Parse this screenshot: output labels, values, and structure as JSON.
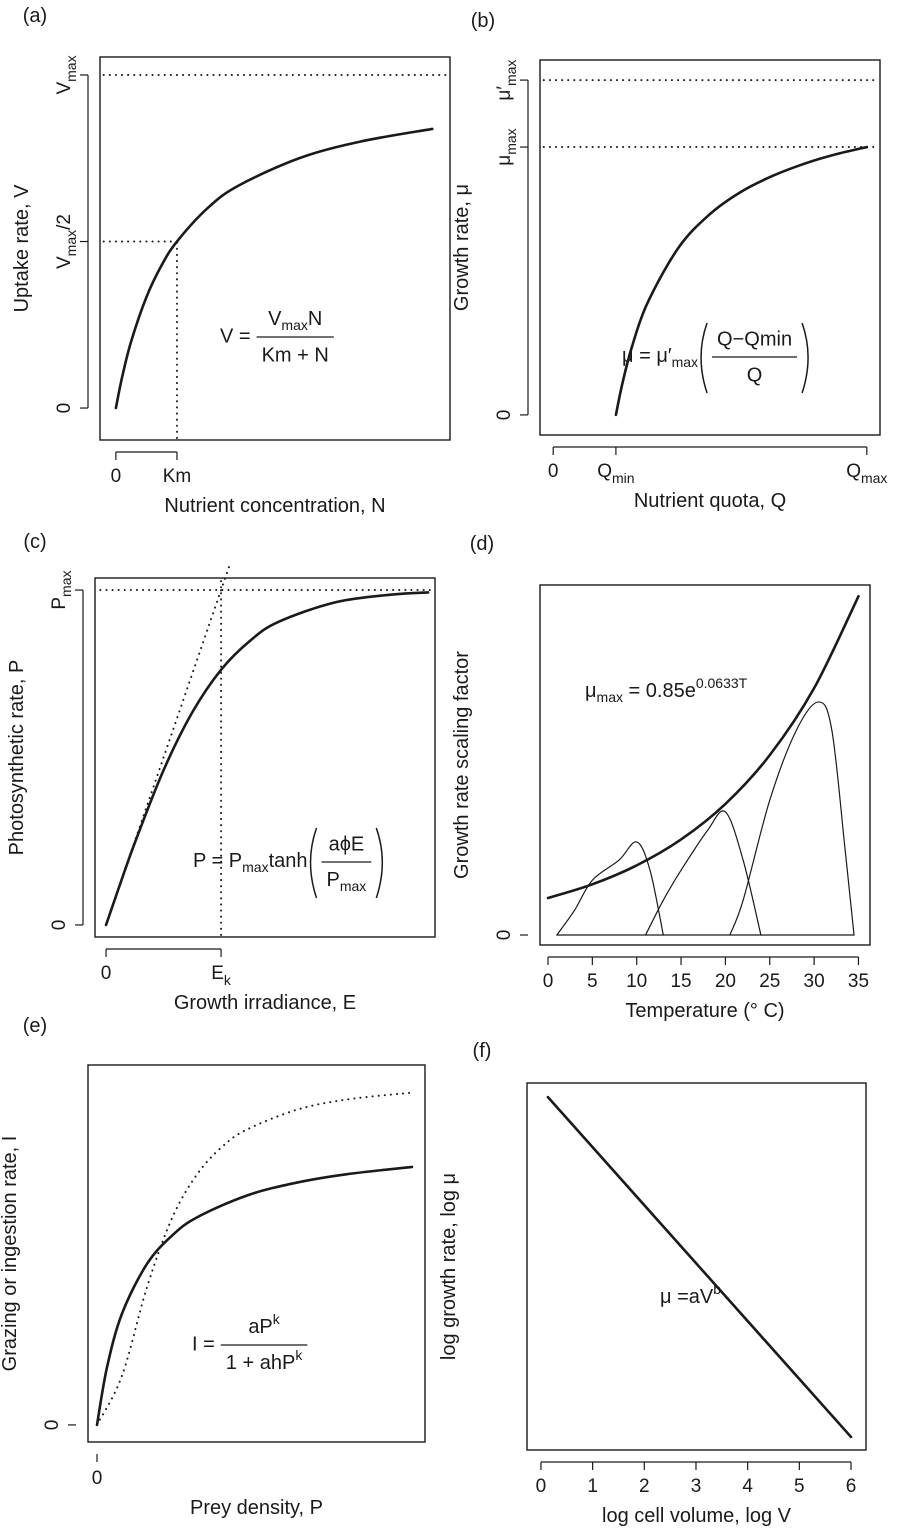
{
  "chart_data": [
    {
      "type": "line",
      "panel_label": "(a)",
      "xlabel": "Nutrient concentration, N",
      "ylabel": "Uptake rate, V",
      "xlim": [
        -0.26,
        5.47
      ],
      "ylim": [
        -0.096,
        1.054
      ],
      "xticks": [
        0,
        {
          "value": 1,
          "label": "Km"
        }
      ],
      "yticks": [
        0,
        {
          "value": 0.5,
          "label": [
            {
              "t": "V"
            },
            {
              "t": "max",
              "s": "sub"
            },
            {
              "t": "/2"
            }
          ]
        },
        {
          "value": 1,
          "label": [
            {
              "t": "V"
            },
            {
              "t": "max",
              "s": "sub"
            }
          ]
        }
      ],
      "series": [
        {
          "x": [
            0,
            0.1,
            0.25,
            0.5,
            0.75,
            1,
            1.5,
            2,
            3,
            4,
            5.18
          ],
          "values": [
            0,
            0.091,
            0.2,
            0.333,
            0.429,
            0.5,
            0.6,
            0.667,
            0.75,
            0.8,
            0.838
          ],
          "style": "solid",
          "linewidth": 2.6,
          "color": "#1a1a1a"
        },
        {
          "x": [
            -0.2,
            5.4
          ],
          "values": [
            1,
            1
          ],
          "style": "dotted",
          "linewidth": 2,
          "color": "#1a1a1a"
        },
        {
          "x": [
            -0.2,
            1
          ],
          "values": [
            0.5,
            0.5
          ],
          "style": "dotted",
          "linewidth": 2,
          "color": "#1a1a1a"
        },
        {
          "x": [
            1,
            1
          ],
          "values": [
            -0.09,
            0.5
          ],
          "style": "dotted",
          "linewidth": 2,
          "color": "#1a1a1a"
        }
      ],
      "annotation": {
        "lhs": "V =",
        "num": [
          {
            "t": "V"
          },
          {
            "t": "max",
            "s": "sub"
          },
          {
            "t": "N"
          }
        ],
        "den": "Km + N"
      }
    },
    {
      "type": "line",
      "panel_label": "(b)",
      "xlabel": "Nutrient quota, Q",
      "ylabel": "Growth rate, μ",
      "xlim": [
        -0.21,
        5.21
      ],
      "ylim": [
        -0.06,
        1.06
      ],
      "xticks": [
        0,
        {
          "value": 1,
          "label": [
            {
              "t": "Q"
            },
            {
              "t": "min",
              "s": "sub"
            }
          ]
        },
        {
          "value": 5,
          "label": [
            {
              "t": "Q"
            },
            {
              "t": "max",
              "s": "sub"
            }
          ]
        }
      ],
      "yticks": [
        0,
        {
          "value": 0.8,
          "label": [
            {
              "t": "μ"
            },
            {
              "t": "max",
              "s": "sub"
            }
          ]
        },
        {
          "value": 1,
          "label": [
            {
              "t": "μ′"
            },
            {
              "t": "max",
              "s": "sub"
            }
          ]
        }
      ],
      "series": [
        {
          "x": [
            1,
            1.1,
            1.25,
            1.5,
            2,
            2.5,
            3,
            3.5,
            4,
            4.5,
            5
          ],
          "values": [
            0,
            0.091,
            0.2,
            0.333,
            0.5,
            0.6,
            0.667,
            0.714,
            0.75,
            0.778,
            0.8
          ],
          "style": "solid",
          "linewidth": 2.6,
          "color": "#1a1a1a"
        },
        {
          "x": [
            -0.15,
            5.15
          ],
          "values": [
            1,
            1
          ],
          "style": "dotted",
          "linewidth": 2,
          "color": "#1a1a1a"
        },
        {
          "x": [
            -0.15,
            5.15
          ],
          "values": [
            0.8,
            0.8
          ],
          "style": "dotted",
          "linewidth": 2,
          "color": "#1a1a1a"
        }
      ],
      "annotation": {
        "lhs": [
          {
            "t": "μ = μ′"
          },
          {
            "t": "max",
            "s": "sub"
          }
        ],
        "num": "Q−Qmin",
        "den": "Q",
        "parens": true
      }
    },
    {
      "type": "line",
      "panel_label": "(c)",
      "xlabel": "Growth irradiance, E",
      "ylabel": "Photosynthetic rate, P",
      "xlim": [
        -0.096,
        2.86
      ],
      "ylim": [
        -0.036,
        1.036
      ],
      "xticks": [
        0,
        {
          "value": 1,
          "label": [
            {
              "t": "E"
            },
            {
              "t": "k",
              "s": "sub"
            }
          ]
        }
      ],
      "yticks": [
        0,
        {
          "value": 1,
          "label": [
            {
              "t": "P"
            },
            {
              "t": "max",
              "s": "sub"
            }
          ]
        }
      ],
      "series": [
        {
          "x": [
            0,
            0.1,
            0.25,
            0.5,
            0.75,
            1,
            1.25,
            1.5,
            2,
            2.5,
            2.8
          ],
          "values": [
            0,
            0.0997,
            0.245,
            0.462,
            0.635,
            0.762,
            0.848,
            0.905,
            0.964,
            0.987,
            0.993
          ],
          "style": "solid",
          "linewidth": 2.6,
          "color": "#1a1a1a"
        },
        {
          "x": [
            -0.05,
            2.82
          ],
          "values": [
            1,
            1
          ],
          "style": "dotted",
          "linewidth": 2,
          "color": "#1a1a1a"
        },
        {
          "x": [
            0,
            1.07
          ],
          "values": [
            0,
            1.07
          ],
          "style": "dotted",
          "linewidth": 2,
          "color": "#1a1a1a"
        },
        {
          "x": [
            1,
            1
          ],
          "values": [
            -0.03,
            1.03
          ],
          "style": "dotted",
          "linewidth": 2,
          "color": "#1a1a1a"
        }
      ],
      "annotation": {
        "lhs": [
          {
            "t": "P = P"
          },
          {
            "t": "max",
            "s": "sub"
          },
          {
            "t": "tanh"
          }
        ],
        "num": "aϕE",
        "den": [
          {
            "t": "P"
          },
          {
            "t": "max",
            "s": "sub"
          }
        ],
        "parens": true
      }
    },
    {
      "type": "line",
      "panel_label": "(d)",
      "xlabel": "Temperature (° C)",
      "ylabel": "Growth rate scaling factor",
      "xlim": [
        -0.9,
        36.3
      ],
      "ylim": [
        -0.23,
        8.05
      ],
      "xticks": [
        0,
        5,
        10,
        15,
        20,
        25,
        30,
        35
      ],
      "yticks": [
        0
      ],
      "series": [
        {
          "x": [
            0,
            5,
            10,
            15,
            20,
            25,
            30,
            35
          ],
          "values": [
            0.85,
            1.166,
            1.601,
            2.197,
            3.015,
            4.137,
            5.677,
            7.791
          ],
          "style": "solid",
          "linewidth": 2.6,
          "color": "#1a1a1a"
        },
        {
          "x": [
            1,
            3,
            5,
            8,
            10,
            11.5,
            13
          ],
          "values": [
            0,
            0.57,
            1.26,
            1.72,
            2.14,
            1.49,
            0
          ],
          "style": "solid",
          "linewidth": 1.2,
          "color": "#1a1a1a"
        },
        {
          "x": [
            11,
            13,
            15,
            18,
            20,
            22,
            24
          ],
          "values": [
            0,
            0.8,
            1.49,
            2.41,
            2.83,
            1.72,
            0
          ],
          "style": "solid",
          "linewidth": 1.2,
          "color": "#1a1a1a"
        },
        {
          "x": [
            20.5,
            22,
            25,
            28,
            30.5,
            32,
            33.5,
            34.5
          ],
          "values": [
            0,
            0.8,
            3.1,
            4.71,
            5.36,
            4.71,
            1.95,
            0
          ],
          "style": "solid",
          "linewidth": 1.2,
          "color": "#1a1a1a"
        },
        {
          "x": [
            1,
            34.5
          ],
          "values": [
            0,
            0
          ],
          "style": "solid",
          "linewidth": 1.2,
          "color": "#1a1a1a"
        }
      ],
      "annotation": {
        "lhs": [
          {
            "t": "μ"
          },
          {
            "t": "max",
            "s": "sub"
          },
          {
            "t": " = 0.85e"
          },
          {
            "t": "0.0633T",
            "s": "sup"
          }
        ]
      }
    },
    {
      "type": "line",
      "panel_label": "(e)",
      "xlabel": "Prey density, P",
      "ylabel": "Grazing or ingestion rate, I",
      "xlim": [
        -0.09,
        3.28
      ],
      "ylim": [
        -0.057,
        1.2
      ],
      "xticks": [
        0
      ],
      "yticks": [
        0
      ],
      "series": [
        {
          "x": [
            0,
            0.1,
            0.25,
            0.5,
            0.75,
            1,
            1.5,
            2,
            2.5,
            3.15
          ],
          "values": [
            0,
            0.192,
            0.371,
            0.537,
            0.631,
            0.692,
            0.765,
            0.808,
            0.836,
            0.86
          ],
          "style": "solid",
          "linewidth": 2.6,
          "color": "#1a1a1a"
        },
        {
          "x": [
            0,
            0.25,
            0.5,
            0.75,
            1,
            1.25,
            1.5,
            2,
            2.5,
            3.15
          ],
          "values": [
            0,
            0.164,
            0.459,
            0.689,
            0.835,
            0.927,
            0.985,
            1.051,
            1.085,
            1.108
          ],
          "style": "dotted",
          "linewidth": 2,
          "color": "#1a1a1a"
        }
      ],
      "annotation": {
        "lhs": "I =",
        "num": [
          {
            "t": "aP"
          },
          {
            "t": "k",
            "s": "sup"
          }
        ],
        "den": [
          {
            "t": "1 + ahP"
          },
          {
            "t": "k",
            "s": "sup"
          }
        ]
      }
    },
    {
      "type": "line",
      "panel_label": "(f)",
      "xlabel": "log cell volume, log V",
      "ylabel": "log growth rate, log μ",
      "xlim": [
        -0.27,
        6.29
      ],
      "ylim": [
        0,
        1.04
      ],
      "xticks": [
        0,
        1,
        2,
        3,
        4,
        5,
        6
      ],
      "series": [
        {
          "x": [
            0.135,
            6
          ],
          "values": [
            1,
            0.037
          ],
          "style": "solid",
          "linewidth": 2.6,
          "color": "#1a1a1a"
        }
      ],
      "annotation": {
        "lhs": [
          {
            "t": "μ =aV"
          },
          {
            "t": "b",
            "s": "sup"
          }
        ]
      }
    }
  ]
}
